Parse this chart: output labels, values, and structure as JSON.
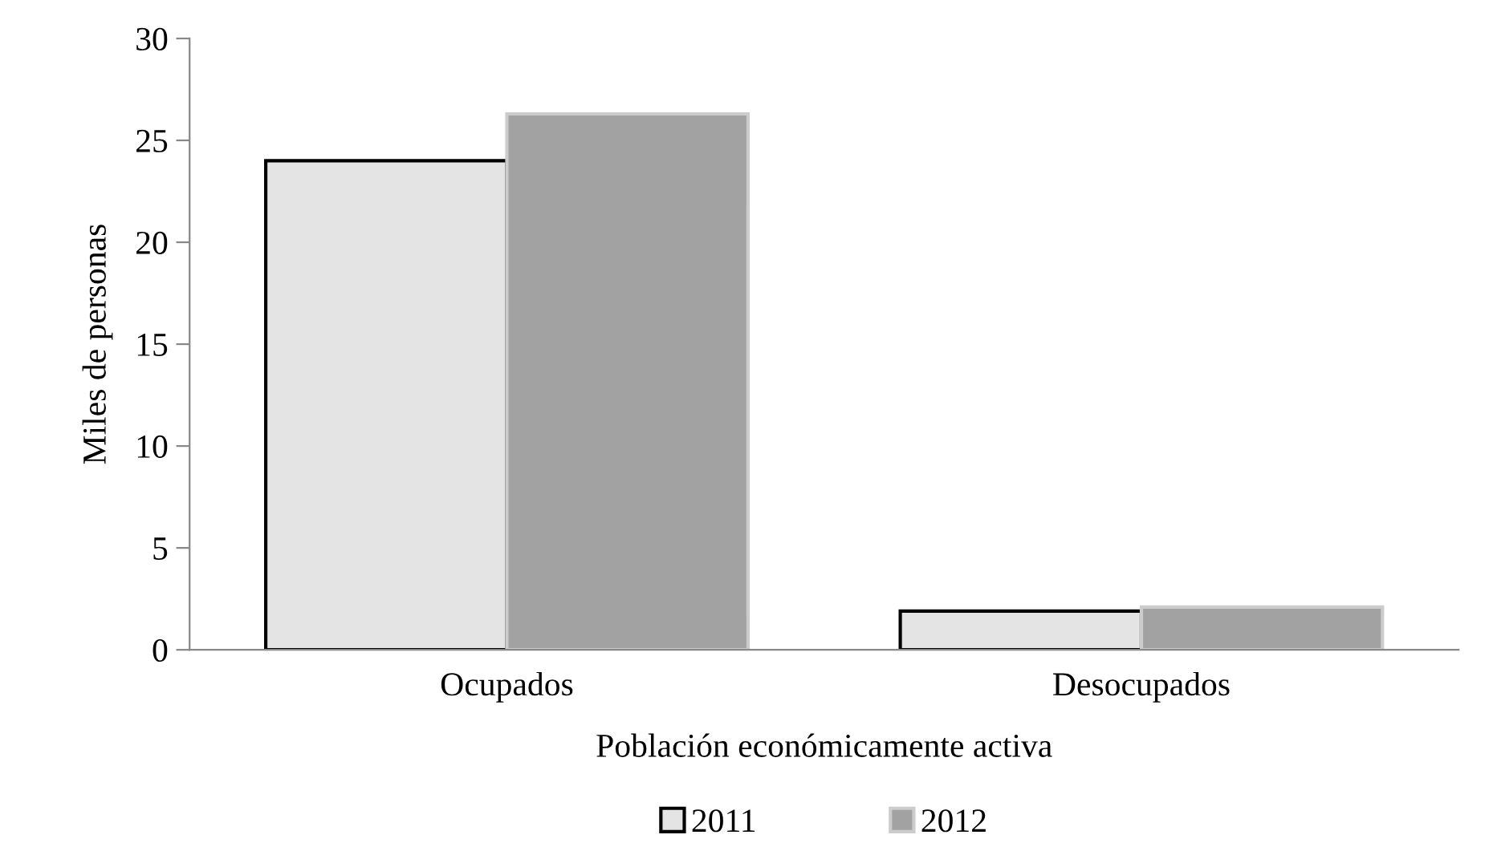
{
  "chart_data": {
    "type": "bar",
    "xlabel": "Población económicamente activa",
    "ylabel": "Miles de personas",
    "categories": [
      "Ocupados",
      "Desocupados"
    ],
    "series": [
      {
        "name": "2011",
        "color": "#e4e4e4",
        "values": [
          24.0,
          1.9
        ]
      },
      {
        "name": "2012",
        "color": "#a2a2a2",
        "values": [
          26.3,
          2.1
        ]
      }
    ],
    "ylim": [
      0,
      30
    ],
    "yticks": [
      0,
      5,
      10,
      15,
      20,
      25,
      30
    ],
    "grid": false,
    "legend": "bottom"
  }
}
